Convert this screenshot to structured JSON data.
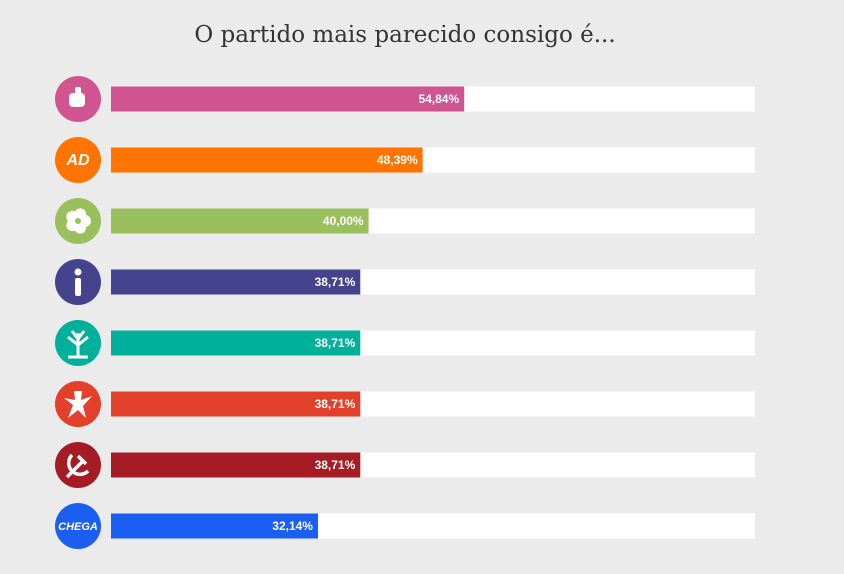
{
  "chart_data": {
    "type": "bar",
    "orientation": "horizontal",
    "title": "O partido mais parecido consigo é...",
    "categories": [
      null,
      "AD",
      null,
      null,
      null,
      null,
      null,
      "CHEGA"
    ],
    "values": [
      54.84,
      48.39,
      40.0,
      38.71,
      38.71,
      38.71,
      38.71,
      32.14
    ],
    "value_labels": [
      "54,84%",
      "48,39%",
      "40,00%",
      "38,71%",
      "38,71%",
      "38,71%",
      "38,71%",
      "32,14%"
    ],
    "colors": [
      "#d0548f",
      "#ff7500",
      "#9abf5d",
      "#45428e",
      "#00b09b",
      "#e2402a",
      "#a51c24",
      "#1a5ef2"
    ],
    "xlim": [
      0,
      100
    ]
  }
}
